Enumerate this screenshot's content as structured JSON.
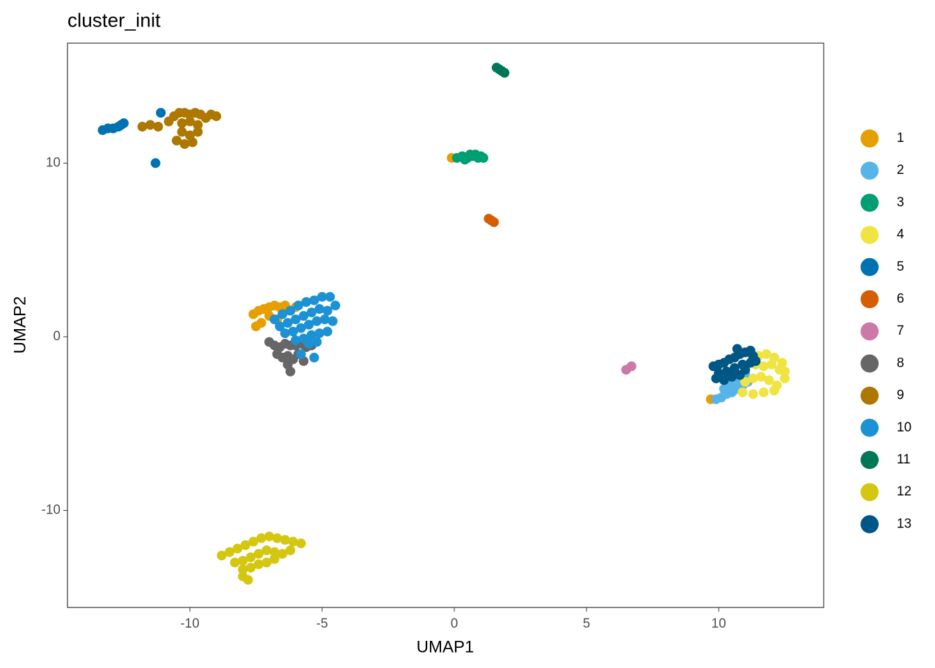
{
  "chart_data": {
    "type": "scatter",
    "title": "cluster_init",
    "x_label": "UMAP1",
    "y_label": "UMAP2",
    "xlim": [
      -14.63,
      13.97
    ],
    "ylim": [
      -15.59,
      16.91
    ],
    "xticks": [
      -10,
      -5,
      0,
      5,
      10
    ],
    "yticks": [
      -10,
      0,
      10
    ],
    "grid": false,
    "legend": "right",
    "series": [
      {
        "name": "1",
        "color": "#E69F00",
        "x": [
          -7.4,
          -7.2,
          -7.0,
          -6.8,
          -6.6,
          -6.4,
          -6.2,
          -6.0,
          -7.3,
          -7.0,
          -6.7,
          -7.5,
          -7.6,
          -0.1,
          9.7
        ],
        "y": [
          1.5,
          1.6,
          1.7,
          1.8,
          1.7,
          1.8,
          1.5,
          1.7,
          0.8,
          1.2,
          1.0,
          0.6,
          1.3,
          10.3,
          -3.6
        ]
      },
      {
        "name": "2",
        "color": "#56B4E9",
        "x": [
          9.9,
          10.1,
          10.3,
          10.5,
          10.7,
          10.9,
          11.1,
          10.4,
          10.6,
          10.8,
          11.0,
          10.2
        ],
        "y": [
          -3.6,
          -3.5,
          -3.3,
          -3.2,
          -3.0,
          -2.8,
          -2.6,
          -2.7,
          -2.5,
          -2.3,
          -2.1,
          -3.0
        ]
      },
      {
        "name": "3",
        "color": "#009E73",
        "x": [
          0.1,
          0.3,
          0.5,
          0.7,
          0.9,
          1.1,
          0.4,
          0.6,
          0.8,
          1.0
        ],
        "y": [
          10.3,
          10.4,
          10.3,
          10.4,
          10.3,
          10.3,
          10.2,
          10.5,
          10.5,
          10.4
        ]
      },
      {
        "name": "4",
        "color": "#F0E442",
        "x": [
          11.2,
          11.5,
          11.8,
          12.1,
          12.4,
          12.5,
          11.4,
          11.7,
          12.0,
          12.3,
          11.0,
          11.3,
          11.6,
          11.9,
          12.2,
          10.9,
          11.3,
          11.7,
          12.1,
          12.5
        ],
        "y": [
          -1.0,
          -1.1,
          -1.0,
          -1.2,
          -1.5,
          -2.0,
          -1.6,
          -1.7,
          -1.6,
          -1.9,
          -2.6,
          -2.4,
          -2.3,
          -2.5,
          -2.8,
          -3.2,
          -3.3,
          -3.2,
          -3.1,
          -2.4
        ]
      },
      {
        "name": "5",
        "color": "#0072B2",
        "x": [
          -13.3,
          -13.1,
          -12.9,
          -12.7,
          -12.5,
          -11.3,
          -11.1,
          -12.6
        ],
        "y": [
          11.9,
          12.0,
          12.0,
          12.1,
          12.3,
          10.0,
          12.9,
          12.2
        ]
      },
      {
        "name": "6",
        "color": "#D55E00",
        "x": [
          1.3,
          1.4,
          1.5
        ],
        "y": [
          6.8,
          6.7,
          6.6
        ]
      },
      {
        "name": "7",
        "color": "#CC79A7",
        "x": [
          6.5,
          6.7
        ],
        "y": [
          -1.9,
          -1.7
        ]
      },
      {
        "name": "8",
        "color": "#666666",
        "x": [
          -7.0,
          -6.8,
          -6.6,
          -6.4,
          -6.2,
          -6.0,
          -5.8,
          -5.6,
          -5.4,
          -6.7,
          -6.5,
          -6.3,
          -6.1,
          -5.9,
          -6.3,
          -6.2,
          -5.7
        ],
        "y": [
          -0.3,
          -0.5,
          -0.6,
          -0.4,
          -0.5,
          -0.5,
          -0.4,
          -0.6,
          -0.5,
          -1.0,
          -1.2,
          -1.1,
          -1.3,
          -1.0,
          -1.6,
          -2.0,
          -1.4
        ]
      },
      {
        "name": "9",
        "color": "#AD7700",
        "x": [
          -11.8,
          -11.5,
          -11.2,
          -10.8,
          -10.6,
          -10.4,
          -10.2,
          -10.0,
          -9.8,
          -9.6,
          -9.4,
          -9.2,
          -9.0,
          -10.3,
          -10.0,
          -9.7,
          -10.3,
          -10.0,
          -9.7,
          -10.5,
          -10.2,
          -9.9
        ],
        "y": [
          12.1,
          12.2,
          12.1,
          12.4,
          12.7,
          12.9,
          12.9,
          12.8,
          12.9,
          12.8,
          12.6,
          12.8,
          12.7,
          12.3,
          12.4,
          12.2,
          11.8,
          11.6,
          11.8,
          11.3,
          11.1,
          11.2
        ]
      },
      {
        "name": "10",
        "color": "#1C91D4",
        "x": [
          -6.8,
          -6.5,
          -6.2,
          -5.9,
          -5.6,
          -5.3,
          -5.0,
          -4.7,
          -4.5,
          -6.6,
          -6.3,
          -6.0,
          -5.7,
          -5.4,
          -5.1,
          -4.8,
          -6.4,
          -6.1,
          -5.8,
          -5.5,
          -5.2,
          -4.9,
          -4.6,
          -6.0,
          -5.7,
          -5.4,
          -5.1,
          -4.8,
          -5.5,
          -5.2,
          -5.8,
          -5.3
        ],
        "y": [
          1.0,
          1.3,
          1.5,
          1.8,
          2.0,
          2.1,
          2.3,
          2.3,
          1.8,
          0.6,
          0.8,
          1.0,
          1.2,
          1.4,
          1.6,
          1.5,
          0.2,
          0.3,
          0.5,
          0.7,
          0.9,
          1.0,
          0.9,
          -0.2,
          -0.1,
          0.1,
          0.2,
          0.3,
          -0.4,
          -0.3,
          -1.0,
          -1.2
        ]
      },
      {
        "name": "11",
        "color": "#007756",
        "x": [
          1.6,
          1.7,
          1.8,
          1.9
        ],
        "y": [
          15.5,
          15.4,
          15.3,
          15.2
        ]
      },
      {
        "name": "12",
        "color": "#D5C711",
        "x": [
          -8.8,
          -8.5,
          -8.2,
          -7.9,
          -7.6,
          -7.3,
          -7.0,
          -6.7,
          -6.4,
          -6.1,
          -5.8,
          -8.3,
          -8.0,
          -7.7,
          -7.4,
          -7.1,
          -6.8,
          -6.5,
          -6.2,
          -8.0,
          -7.7,
          -7.4,
          -7.1,
          -6.8,
          -8.0,
          -7.8
        ],
        "y": [
          -12.6,
          -12.4,
          -12.2,
          -12.0,
          -11.8,
          -11.6,
          -11.5,
          -11.6,
          -11.7,
          -11.8,
          -11.9,
          -13.0,
          -12.9,
          -12.7,
          -12.5,
          -12.3,
          -12.4,
          -12.5,
          -12.3,
          -13.4,
          -13.3,
          -13.1,
          -13.0,
          -12.8,
          -13.8,
          -14.0
        ]
      },
      {
        "name": "13",
        "color": "#005685",
        "x": [
          9.8,
          10.0,
          10.2,
          10.4,
          10.6,
          10.8,
          11.0,
          11.2,
          10.0,
          10.3,
          10.6,
          10.9,
          11.2,
          9.9,
          10.2,
          10.5,
          10.8,
          11.0,
          10.7,
          11.3,
          11.4
        ],
        "y": [
          -1.7,
          -1.6,
          -1.5,
          -1.3,
          -1.2,
          -1.0,
          -0.9,
          -0.8,
          -2.1,
          -2.0,
          -1.8,
          -1.6,
          -1.5,
          -2.4,
          -2.5,
          -2.3,
          -2.2,
          -1.9,
          -0.7,
          -1.1,
          -1.4
        ]
      }
    ]
  }
}
